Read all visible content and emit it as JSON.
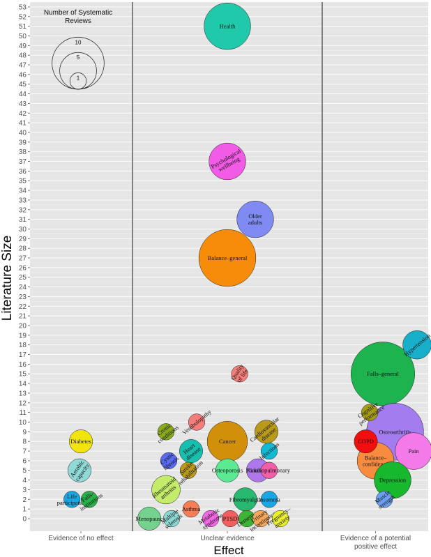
{
  "chart_data": {
    "type": "scatter",
    "xlabel": "Effect",
    "ylabel": "Literature Size",
    "ylim": [
      -1.3,
      53.5
    ],
    "yticks": [
      0,
      1,
      2,
      3,
      4,
      5,
      6,
      7,
      8,
      9,
      10,
      11,
      12,
      13,
      14,
      15,
      16,
      17,
      18,
      19,
      20,
      21,
      22,
      23,
      24,
      25,
      26,
      27,
      28,
      29,
      30,
      31,
      32,
      33,
      34,
      35,
      36,
      37,
      38,
      39,
      40,
      41,
      42,
      43,
      44,
      45,
      46,
      47,
      48,
      49,
      50,
      51,
      52,
      53
    ],
    "categories": [
      {
        "name": "Evidence of no effect",
        "lines": [
          "Evidence of no effect"
        ]
      },
      {
        "name": "Unclear evidence",
        "lines": [
          "Unclear evidence"
        ]
      },
      {
        "name": "Evidence of a potential positive effect",
        "lines": [
          "Evidence of a potential",
          "positive effect"
        ]
      }
    ],
    "legend": {
      "title_lines": [
        "Number of Systematic",
        "Reviews"
      ],
      "sizes": [
        10,
        5,
        1
      ],
      "position": "top-left"
    },
    "points": [
      {
        "label": "Diabetes",
        "lines": [
          "Diabetes"
        ],
        "panel": 0,
        "xoff": 0.0,
        "y": 8,
        "size": 2,
        "color": "#F2E40E",
        "rot": 0
      },
      {
        "label": "Aerobic capacity",
        "lines": [
          "Aerobic",
          "capacity"
        ],
        "panel": 0,
        "xoff": -0.05,
        "y": 5,
        "size": 2,
        "color": "#8FD9D6",
        "rot": -55
      },
      {
        "label": "Life participation",
        "lines": [
          "Life",
          "participation"
        ],
        "panel": 0,
        "xoff": -0.32,
        "y": 2,
        "size": 1,
        "color": "#19A7E3",
        "rot": 0
      },
      {
        "label": "Falls-institutions",
        "lines": [
          "Falls-",
          "institutions"
        ],
        "panel": 0,
        "xoff": 0.3,
        "y": 2,
        "size": 1,
        "color": "#27B24A",
        "rot": -35
      },
      {
        "label": "Health",
        "lines": [
          "Health"
        ],
        "panel": 1,
        "xoff": 0.0,
        "y": 51,
        "size": 8,
        "color": "#1FC9A9",
        "rot": 0
      },
      {
        "label": "Psychological wellbeing",
        "lines": [
          "Psychological",
          "wellbeing"
        ],
        "panel": 1,
        "xoff": 0.0,
        "y": 37,
        "size": 5,
        "color": "#F15BE6",
        "rot": -30
      },
      {
        "label": "Older adults",
        "lines": [
          "Older",
          "adults"
        ],
        "panel": 1,
        "xoff": 0.5,
        "y": 31,
        "size": 5,
        "color": "#7F8AF2",
        "rot": 0
      },
      {
        "label": "Balance-general",
        "lines": [
          "Balance–general"
        ],
        "panel": 1,
        "xoff": 0.0,
        "y": 27,
        "size": 12,
        "color": "#F78C0A",
        "rot": 0
      },
      {
        "label": "Quality of life",
        "lines": [
          "Quality",
          "of life"
        ],
        "panel": 1,
        "xoff": 0.22,
        "y": 15,
        "size": 1,
        "color": "#F57E7A",
        "rot": -55
      },
      {
        "label": "Cronic conditions",
        "lines": [
          "Cronic",
          "conditions"
        ],
        "panel": 1,
        "xoff": -1.1,
        "y": 9,
        "size": 1,
        "color": "#8AAA1E",
        "rot": -38
      },
      {
        "label": "Vestibulopathy",
        "lines": [
          "Vestibulopathy"
        ],
        "panel": 1,
        "xoff": -0.55,
        "y": 10,
        "size": 1,
        "color": "#F57E7A",
        "rot": -40
      },
      {
        "label": "Cardiovascular disease",
        "lines": [
          "Cardiovascular",
          "disease"
        ],
        "panel": 1,
        "xoff": 0.7,
        "y": 9,
        "size": 2,
        "color": "#B99A1A",
        "rot": -40
      },
      {
        "label": "Cancer",
        "lines": [
          "Cancer"
        ],
        "panel": 1,
        "xoff": 0.0,
        "y": 8,
        "size": 6,
        "color": "#D2900A",
        "rot": 0
      },
      {
        "label": "Cystic fibrosis",
        "lines": [
          "Cystic",
          "fibrosis"
        ],
        "panel": 1,
        "xoff": -1.05,
        "y": 6,
        "size": 1,
        "color": "#5A6BEF",
        "rot": -40
      },
      {
        "label": "Heart disease",
        "lines": [
          "Heart",
          "disease"
        ],
        "panel": 1,
        "xoff": -0.65,
        "y": 7,
        "size": 2,
        "color": "#17BFAE",
        "rot": -40
      },
      {
        "label": "Infections",
        "lines": [
          "Infections"
        ],
        "panel": 1,
        "xoff": 0.75,
        "y": 7,
        "size": 1,
        "color": "#12B9D5",
        "rot": -40
      },
      {
        "label": "Stroke rehabilitation",
        "lines": [
          "Stroke",
          "rehabilitation"
        ],
        "panel": 1,
        "xoff": -0.7,
        "y": 5,
        "size": 1,
        "color": "#B99A1A",
        "rot": -45
      },
      {
        "label": "Osteoporosis",
        "lines": [
          "Osteoporosis"
        ],
        "panel": 1,
        "xoff": 0.0,
        "y": 5,
        "size": 2,
        "color": "#5BEA92",
        "rot": 0
      },
      {
        "label": "Parkinson",
        "lines": [
          "Parkinson"
        ],
        "panel": 1,
        "xoff": 0.55,
        "y": 5,
        "size": 2,
        "color": "#B077EC",
        "rot": 0
      },
      {
        "label": "Cardiopulmonary",
        "lines": [
          "Cardiopulmonary"
        ],
        "panel": 1,
        "xoff": 0.75,
        "y": 5,
        "size": 1,
        "color": "#F25FA8",
        "rot": 0
      },
      {
        "label": "Rheumatoid arthritis",
        "lines": [
          "Rheumatoid",
          "arthritis"
        ],
        "panel": 1,
        "xoff": -1.1,
        "y": 3,
        "size": 3,
        "color": "#C4EC6A",
        "rot": -40
      },
      {
        "label": "Asthma",
        "lines": [
          "Asthma"
        ],
        "panel": 1,
        "xoff": -0.65,
        "y": 1,
        "size": 1,
        "color": "#F57E57",
        "rot": 0
      },
      {
        "label": "Fibromyalgia",
        "lines": [
          "Fibromyalgia"
        ],
        "panel": 1,
        "xoff": 0.32,
        "y": 2,
        "size": 2,
        "color": "#27B970",
        "rot": 0
      },
      {
        "label": "Insomnia",
        "lines": [
          "Insomnia"
        ],
        "panel": 1,
        "xoff": 0.75,
        "y": 2,
        "size": 1,
        "color": "#19A7E3",
        "rot": 0
      },
      {
        "label": "Menopause",
        "lines": [
          "Menopause"
        ],
        "panel": 1,
        "xoff": -1.4,
        "y": 0,
        "size": 2,
        "color": "#73D28E",
        "rot": 0
      },
      {
        "label": "Multiple sclerosis",
        "lines": [
          "Multiple",
          "sclerosis"
        ],
        "panel": 1,
        "xoff": -1.0,
        "y": 0,
        "size": 1,
        "color": "#8CD7D2",
        "rot": -38
      },
      {
        "label": "Metabolic syndrome",
        "lines": [
          "Metabolic",
          "syndrome"
        ],
        "panel": 1,
        "xoff": -0.3,
        "y": 0,
        "size": 1,
        "color": "#F266E3",
        "rot": -35
      },
      {
        "label": "PTSD",
        "lines": [
          "PTSD"
        ],
        "panel": 1,
        "xoff": 0.05,
        "y": 0,
        "size": 1,
        "color": "#F25F5F",
        "rot": 0
      },
      {
        "label": "Dementia",
        "lines": [
          "Dementia"
        ],
        "panel": 1,
        "xoff": 0.35,
        "y": 0,
        "size": 1,
        "color": "#3DB534",
        "rot": -35
      },
      {
        "label": "Urinary incontinence",
        "lines": [
          "Urinary",
          "incontinence"
        ],
        "panel": 1,
        "xoff": 0.6,
        "y": 0,
        "size": 1,
        "color": "#F7A85B",
        "rot": -35
      },
      {
        "label": "Pregnancy-anxiety",
        "lines": [
          "Pregnancy–",
          "anxiety"
        ],
        "panel": 1,
        "xoff": 0.95,
        "y": 0,
        "size": 1,
        "color": "#EAF02A",
        "rot": -35
      },
      {
        "label": "Hypertension",
        "lines": [
          "Hypertension"
        ],
        "panel": 2,
        "xoff": 0.85,
        "y": 18,
        "size": 3,
        "color": "#18AFCB",
        "rot": -40
      },
      {
        "label": "Falls-general",
        "lines": [
          "Falls–general"
        ],
        "panel": 2,
        "xoff": 0.15,
        "y": 15,
        "size": 15,
        "color": "#1DB34F",
        "rot": 0
      },
      {
        "label": "Cognitive performance",
        "lines": [
          "Cognitive",
          "performance"
        ],
        "panel": 2,
        "xoff": -0.12,
        "y": 11,
        "size": 1,
        "color": "#A59B14",
        "rot": -35
      },
      {
        "label": "COPD",
        "lines": [
          "COPD"
        ],
        "panel": 2,
        "xoff": -0.2,
        "y": 8,
        "size": 2,
        "color": "#F01010",
        "rot": 0
      },
      {
        "label": "Osteoarthritis",
        "lines": [
          "Osteoarthritis"
        ],
        "panel": 2,
        "xoff": 0.4,
        "y": 9,
        "size": 12,
        "color": "#A37DF0",
        "rot": 0
      },
      {
        "label": "Pain",
        "lines": [
          "Pain"
        ],
        "panel": 2,
        "xoff": 0.78,
        "y": 7,
        "size": 5,
        "color": "#F57AE9",
        "rot": 0
      },
      {
        "label": "Balance-confidence",
        "lines": [
          "Balance–",
          "confidence"
        ],
        "panel": 2,
        "xoff": 0.0,
        "y": 6,
        "size": 5,
        "color": "#F78C3E",
        "rot": 0
      },
      {
        "label": "Depression",
        "lines": [
          "Depression"
        ],
        "panel": 2,
        "xoff": 0.35,
        "y": 4,
        "size": 5,
        "color": "#17B82E",
        "rot": 0
      },
      {
        "label": "Muscle strength",
        "lines": [
          "Muscle",
          "strength"
        ],
        "panel": 2,
        "xoff": 0.18,
        "y": 2,
        "size": 1,
        "color": "#6C9FEF",
        "rot": -38
      }
    ]
  }
}
